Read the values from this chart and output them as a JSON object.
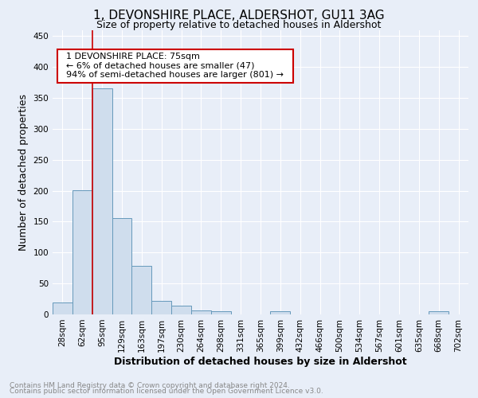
{
  "title": "1, DEVONSHIRE PLACE, ALDERSHOT, GU11 3AG",
  "subtitle": "Size of property relative to detached houses in Aldershot",
  "xlabel": "Distribution of detached houses by size in Aldershot",
  "ylabel": "Number of detached properties",
  "footnote1": "Contains HM Land Registry data © Crown copyright and database right 2024.",
  "footnote2": "Contains public sector information licensed under the Open Government Licence v3.0.",
  "annotation_line1": "  1 DEVONSHIRE PLACE: 75sqm  ",
  "annotation_line2": "  ← 6% of detached houses are smaller (47)  ",
  "annotation_line3": "  94% of semi-detached houses are larger (801) →  ",
  "bar_labels": [
    "28sqm",
    "62sqm",
    "95sqm",
    "129sqm",
    "163sqm",
    "197sqm",
    "230sqm",
    "264sqm",
    "298sqm",
    "331sqm",
    "365sqm",
    "399sqm",
    "432sqm",
    "466sqm",
    "500sqm",
    "534sqm",
    "567sqm",
    "601sqm",
    "635sqm",
    "668sqm",
    "702sqm"
  ],
  "bar_values": [
    19,
    201,
    366,
    156,
    79,
    22,
    14,
    7,
    5,
    0,
    0,
    5,
    0,
    0,
    0,
    0,
    0,
    0,
    0,
    5,
    0
  ],
  "bar_color": "#cfdded",
  "bar_edge_color": "#6699bb",
  "marker_color": "#cc0000",
  "ylim": [
    0,
    460
  ],
  "yticks": [
    0,
    50,
    100,
    150,
    200,
    250,
    300,
    350,
    400,
    450
  ],
  "background_color": "#e8eef8",
  "plot_background": "#e8eef8",
  "annotation_box_color": "#ffffff",
  "annotation_box_edge": "#cc0000",
  "title_fontsize": 11,
  "subtitle_fontsize": 9,
  "axis_label_fontsize": 9,
  "tick_fontsize": 7.5,
  "annotation_fontsize": 8,
  "footnote_fontsize": 6.5
}
